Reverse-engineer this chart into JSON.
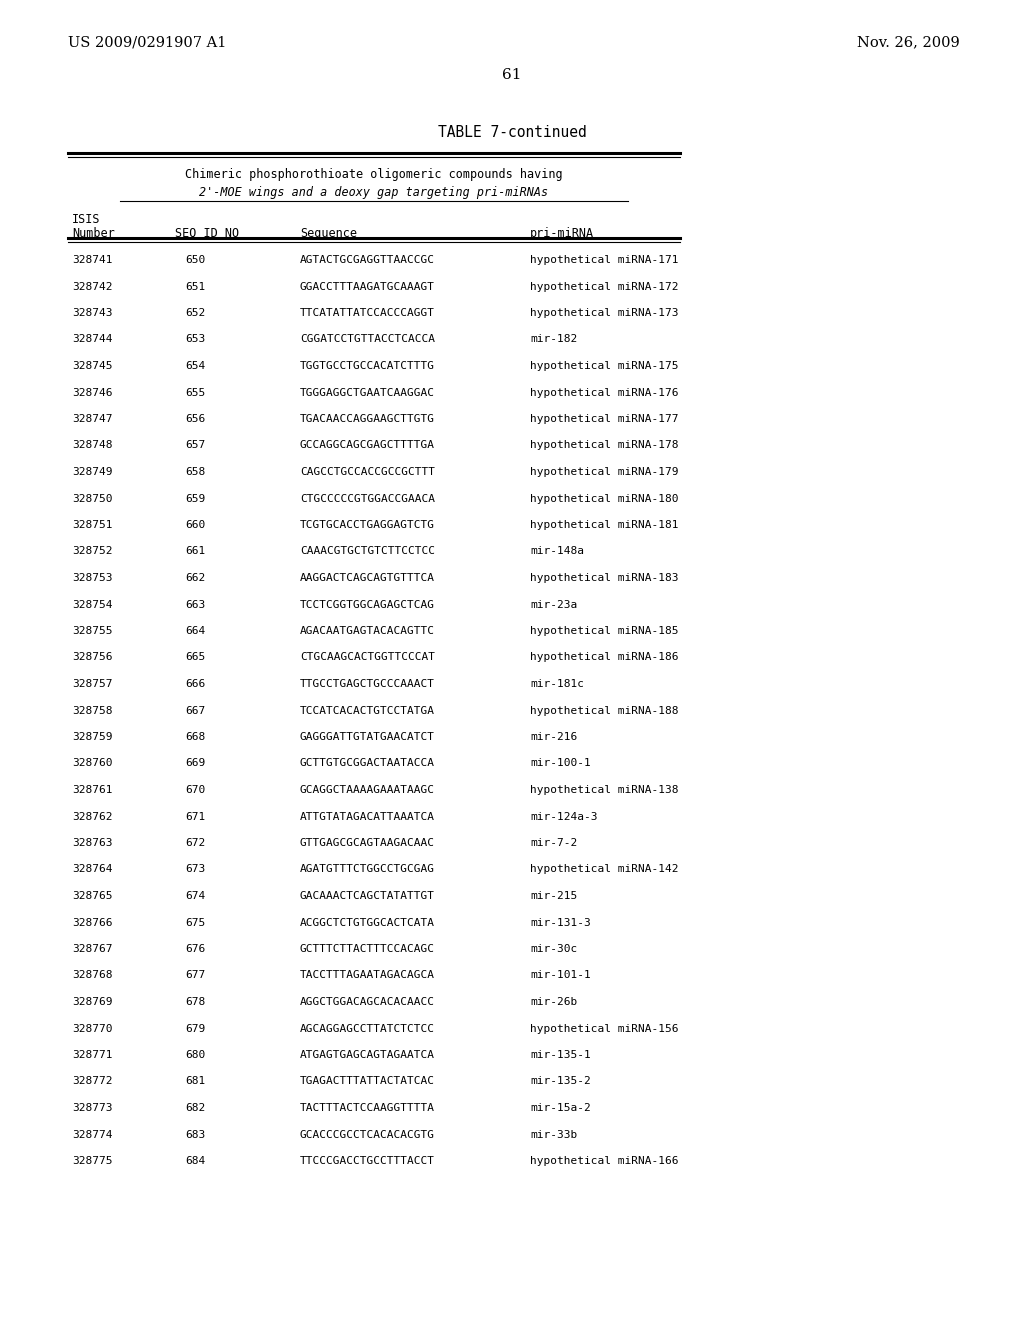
{
  "header_left": "US 2009/0291907 A1",
  "header_right": "Nov. 26, 2009",
  "page_number": "61",
  "table_title": "TABLE 7-continued",
  "subtitle_line1": "Chimeric phosphorothioate oligomeric compounds having",
  "subtitle_line2": "2'-MOE wings and a deoxy gap targeting pri-miRNAs",
  "rows": [
    [
      "328741",
      "650",
      "AGTACTGCGAGGTTAACCGC",
      "hypothetical miRNA-171"
    ],
    [
      "328742",
      "651",
      "GGACCTTTAAGATGCAAAGT",
      "hypothetical miRNA-172"
    ],
    [
      "328743",
      "652",
      "TTCATATTATCCACCCAGGT",
      "hypothetical miRNA-173"
    ],
    [
      "328744",
      "653",
      "CGGATCCTGTTACCTCACCA",
      "mir-182"
    ],
    [
      "328745",
      "654",
      "TGGTGCCTGCCACATCTTTG",
      "hypothetical miRNA-175"
    ],
    [
      "328746",
      "655",
      "TGGGAGGCTGAATCAAGGAC",
      "hypothetical miRNA-176"
    ],
    [
      "328747",
      "656",
      "TGACAACCAGGAAGCTTGTG",
      "hypothetical miRNA-177"
    ],
    [
      "328748",
      "657",
      "GCCAGGCAGCGAGCTTTTGA",
      "hypothetical miRNA-178"
    ],
    [
      "328749",
      "658",
      "CAGCCTGCCACCGCCGCTTT",
      "hypothetical miRNA-179"
    ],
    [
      "328750",
      "659",
      "CTGCCCCCGTGGACCGAACA",
      "hypothetical miRNA-180"
    ],
    [
      "328751",
      "660",
      "TCGTGCACCTGAGGAGTCTG",
      "hypothetical miRNA-181"
    ],
    [
      "328752",
      "661",
      "CAAACGTGCTGTCTTCCTCC",
      "mir-148a"
    ],
    [
      "328753",
      "662",
      "AAGGACTCAGCAGTGTTTCA",
      "hypothetical miRNA-183"
    ],
    [
      "328754",
      "663",
      "TCCTCGGTGGCAGAGCTCAG",
      "mir-23a"
    ],
    [
      "328755",
      "664",
      "AGACAATGAGTACACAGTTC",
      "hypothetical miRNA-185"
    ],
    [
      "328756",
      "665",
      "CTGCAAGCACTGGTTCCCAT",
      "hypothetical miRNA-186"
    ],
    [
      "328757",
      "666",
      "TTGCCTGAGCTGCCCAAACT",
      "mir-181c"
    ],
    [
      "328758",
      "667",
      "TCCATCACACTGTCCTATGA",
      "hypothetical miRNA-188"
    ],
    [
      "328759",
      "668",
      "GAGGGATTGTATGAACATCT",
      "mir-216"
    ],
    [
      "328760",
      "669",
      "GCTTGTGCGGACTAATACCA",
      "mir-100-1"
    ],
    [
      "328761",
      "670",
      "GCAGGCTAAAAGAAATAAGC",
      "hypothetical miRNA-138"
    ],
    [
      "328762",
      "671",
      "ATTGTATAGACATTAAATCA",
      "mir-124a-3"
    ],
    [
      "328763",
      "672",
      "GTTGAGCGCAGTAAGACAAC",
      "mir-7-2"
    ],
    [
      "328764",
      "673",
      "AGATGTTTCTGGCCTGCGAG",
      "hypothetical miRNA-142"
    ],
    [
      "328765",
      "674",
      "GACAAACTCAGCTATATTGT",
      "mir-215"
    ],
    [
      "328766",
      "675",
      "ACGGCTCTGTGGCACTCATA",
      "mir-131-3"
    ],
    [
      "328767",
      "676",
      "GCTTTCTTACTTTCCACAGC",
      "mir-30c"
    ],
    [
      "328768",
      "677",
      "TACCTTTAGAATAGACAGCA",
      "mir-101-1"
    ],
    [
      "328769",
      "678",
      "AGGCTGGACAGCACACAACC",
      "mir-26b"
    ],
    [
      "328770",
      "679",
      "AGCAGGAGCCTTATCTCTCC",
      "hypothetical miRNA-156"
    ],
    [
      "328771",
      "680",
      "ATGAGTGAGCAGTAGAATCA",
      "mir-135-1"
    ],
    [
      "328772",
      "681",
      "TGAGACTTTATTACTATCAC",
      "mir-135-2"
    ],
    [
      "328773",
      "682",
      "TACTTTACTCCAAGGTTTТА",
      "mir-15a-2"
    ],
    [
      "328774",
      "683",
      "GCACCCGCCTCACACACGTG",
      "mir-33b"
    ],
    [
      "328775",
      "684",
      "TTCCCGACCTGCCTTTACCT",
      "hypothetical miRNA-166"
    ]
  ],
  "bg_color": "#ffffff",
  "text_color": "#000000"
}
